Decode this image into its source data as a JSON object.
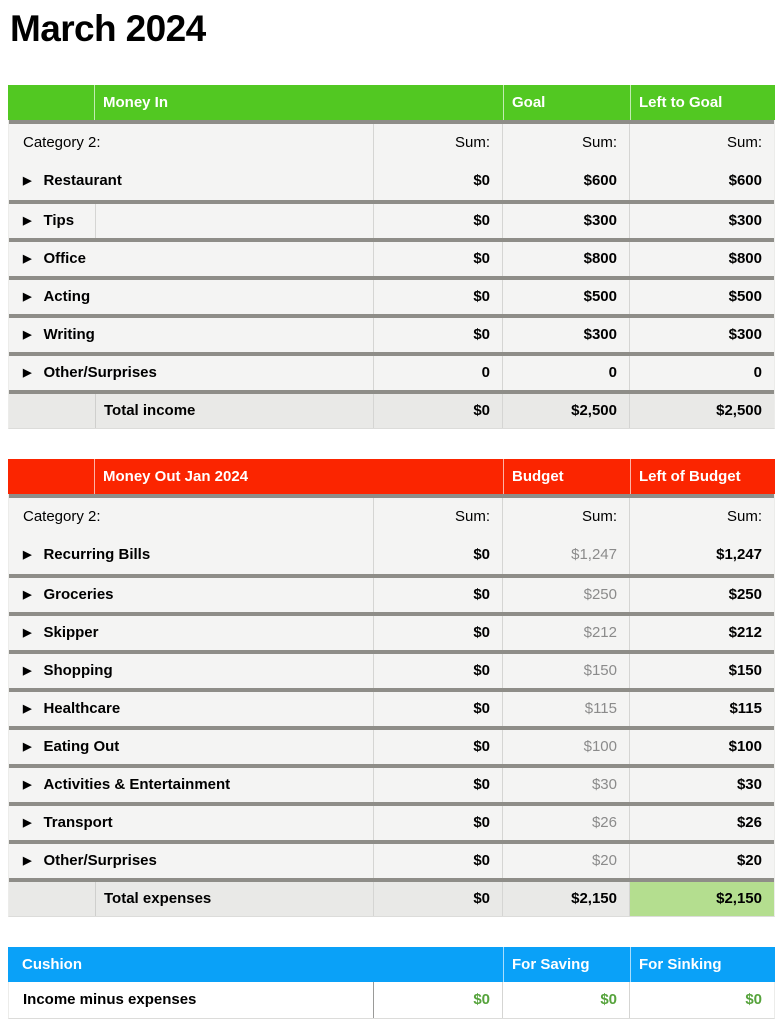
{
  "page_title": "March 2024",
  "colors": {
    "money_in_accent": "#52c822",
    "money_out_accent": "#fb2500",
    "cushion_accent": "#0aa1f8",
    "separator": "#8e8d88",
    "row_bg": "#f4f4f3",
    "total_row_bg": "#e9e9e7",
    "highlight_cell_bg": "#b4de8f",
    "muted_text": "#8b8b8b",
    "cushion_value_text": "#56a33c"
  },
  "tables": [
    {
      "name": "money-in",
      "header": {
        "title": "Money In",
        "col1": "Goal",
        "col2": "Left to Goal",
        "accent": "#52c822"
      },
      "category_label": "Category 2:",
      "sum_label": "Sum:",
      "group_item": {
        "label": "Restaurant",
        "values": [
          "$0",
          "$600",
          "$600"
        ]
      },
      "items": [
        {
          "label": "Tips",
          "values": [
            "$0",
            "$300",
            "$300"
          ],
          "label_divider": true
        },
        {
          "label": "Office",
          "values": [
            "$0",
            "$800",
            "$800"
          ]
        },
        {
          "label": "Acting",
          "values": [
            "$0",
            "$500",
            "$500"
          ]
        },
        {
          "label": "Writing",
          "values": [
            "$0",
            "$300",
            "$300"
          ]
        },
        {
          "label": "Other/Surprises",
          "values": [
            "0",
            "0",
            "0"
          ]
        }
      ],
      "total": {
        "label": "Total income",
        "values": [
          "$0",
          "$2,500",
          "$2,500"
        ],
        "highlight_last": false
      }
    },
    {
      "name": "money-out",
      "header": {
        "title": "Money Out Jan 2024",
        "col1": "Budget",
        "col2": "Left of Budget",
        "accent": "#fb2500"
      },
      "category_label": "Category 2:",
      "sum_label": "Sum:",
      "muted_value_index": 1,
      "group_item": {
        "label": "Recurring Bills",
        "values": [
          "$0",
          "$1,247",
          "$1,247"
        ]
      },
      "items": [
        {
          "label": "Groceries",
          "values": [
            "$0",
            "$250",
            "$250"
          ]
        },
        {
          "label": "Skipper",
          "values": [
            "$0",
            "$212",
            "$212"
          ]
        },
        {
          "label": "Shopping",
          "values": [
            "$0",
            "$150",
            "$150"
          ]
        },
        {
          "label": "Healthcare",
          "values": [
            "$0",
            "$115",
            "$115"
          ]
        },
        {
          "label": "Eating Out",
          "values": [
            "$0",
            "$100",
            "$100"
          ]
        },
        {
          "label": "Activities & Entertainment",
          "values": [
            "$0",
            "$30",
            "$30"
          ]
        },
        {
          "label": "Transport",
          "values": [
            "$0",
            "$26",
            "$26"
          ]
        },
        {
          "label": "Other/Surprises",
          "values": [
            "$0",
            "$20",
            "$20"
          ]
        }
      ],
      "total": {
        "label": "Total expenses",
        "values": [
          "$0",
          "$2,150",
          "$2,150"
        ],
        "highlight_last": true
      }
    }
  ],
  "cushion": {
    "header": {
      "title": "Cushion",
      "col1": "For Saving",
      "col2": "For Sinking",
      "accent": "#0aa1f8"
    },
    "row": {
      "label": "Income minus expenses",
      "values": {
        "0": "$0",
        "1": "$0",
        "2": "$0"
      }
    }
  }
}
